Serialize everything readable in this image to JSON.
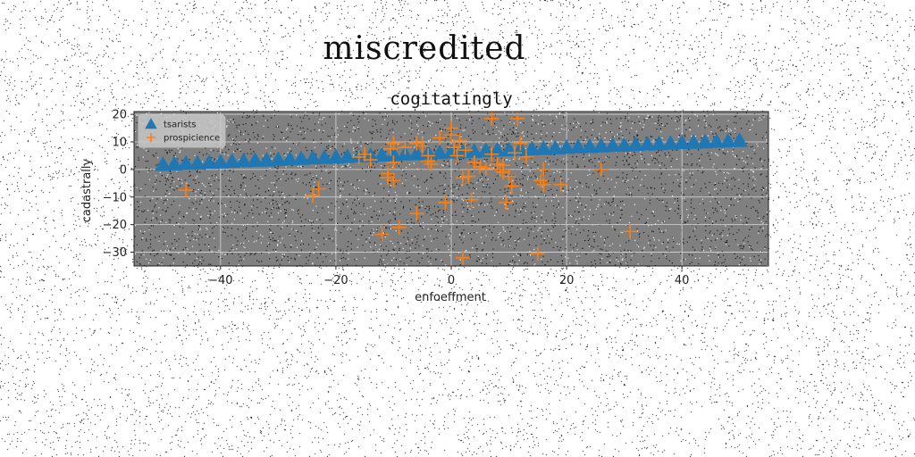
{
  "figure": {
    "suptitle": "miscredited"
  },
  "chart_data": {
    "type": "scatter",
    "title": "cogitatingly",
    "xlabel": "enfoeffment",
    "ylabel": "cadastrally",
    "xlim": [
      -55,
      55
    ],
    "ylim": [
      -35,
      21
    ],
    "xticks": [
      -40,
      -20,
      0,
      20,
      40
    ],
    "yticks": [
      -30,
      -20,
      -10,
      0,
      10,
      20
    ],
    "grid": true,
    "legend_position": "top-left",
    "background_noise": true,
    "series": [
      {
        "name": "tsarists",
        "marker": "triangle",
        "color": "#1f77b4",
        "x": [
          -50,
          -48,
          -46,
          -44,
          -42,
          -40,
          -38,
          -36,
          -34,
          -32,
          -30,
          -28,
          -26,
          -24,
          -22,
          -20,
          -18,
          -16,
          -14,
          -12,
          -10,
          -8,
          -6,
          -4,
          -2,
          0,
          2,
          4,
          6,
          8,
          10,
          12,
          14,
          16,
          18,
          20,
          22,
          24,
          26,
          28,
          30,
          32,
          34,
          36,
          38,
          40,
          42,
          44,
          46,
          48,
          50
        ],
        "y": [
          1.8,
          2.0,
          2.2,
          2.3,
          2.5,
          2.7,
          2.9,
          3.1,
          3.3,
          3.4,
          3.6,
          3.8,
          4.0,
          4.2,
          4.3,
          4.5,
          4.7,
          4.9,
          5.0,
          5.2,
          5.4,
          5.6,
          5.7,
          5.9,
          6.1,
          6.3,
          6.4,
          6.6,
          6.8,
          7.0,
          7.1,
          7.3,
          7.5,
          7.6,
          7.8,
          8.0,
          8.2,
          8.3,
          8.5,
          8.7,
          8.8,
          9.0,
          9.2,
          9.3,
          9.5,
          9.7,
          9.8,
          10.0,
          10.2,
          10.3,
          10.5
        ]
      },
      {
        "name": "prospicience",
        "marker": "plus",
        "color": "#ff7f0e",
        "x": [
          -46,
          -24,
          -23,
          -16,
          -15,
          -14,
          -12,
          -11,
          -11,
          -10.5,
          -10,
          -10,
          -10,
          -9,
          -8,
          -6,
          -6,
          -5,
          -4,
          -4,
          -3.5,
          -2,
          -1,
          0,
          0,
          0.5,
          1,
          1.5,
          2,
          2,
          2.5,
          3,
          3.5,
          4,
          5,
          6,
          7,
          7,
          8,
          8.5,
          9,
          9,
          9.5,
          10,
          10.5,
          11,
          11.5,
          12,
          13,
          15,
          15.5,
          16,
          16,
          19,
          26,
          31
        ],
        "y": [
          -7.5,
          -9.5,
          -7,
          4.5,
          5.5,
          3.5,
          -23.5,
          -1.5,
          -3,
          7.5,
          -4,
          2.5,
          9.5,
          -21,
          8,
          9.5,
          -16,
          8.5,
          5,
          3,
          2,
          11.5,
          -12,
          12.5,
          15,
          8,
          5,
          10.5,
          -3,
          -32,
          7,
          -2.5,
          -11,
          2.5,
          1,
          0.5,
          5.5,
          18.5,
          2,
          0,
          -1,
          1.5,
          -12,
          -2.5,
          -6,
          6,
          18.5,
          9.5,
          4.5,
          -30.5,
          -4,
          -5.5,
          0,
          -5.5,
          0,
          -22.5
        ]
      }
    ]
  }
}
